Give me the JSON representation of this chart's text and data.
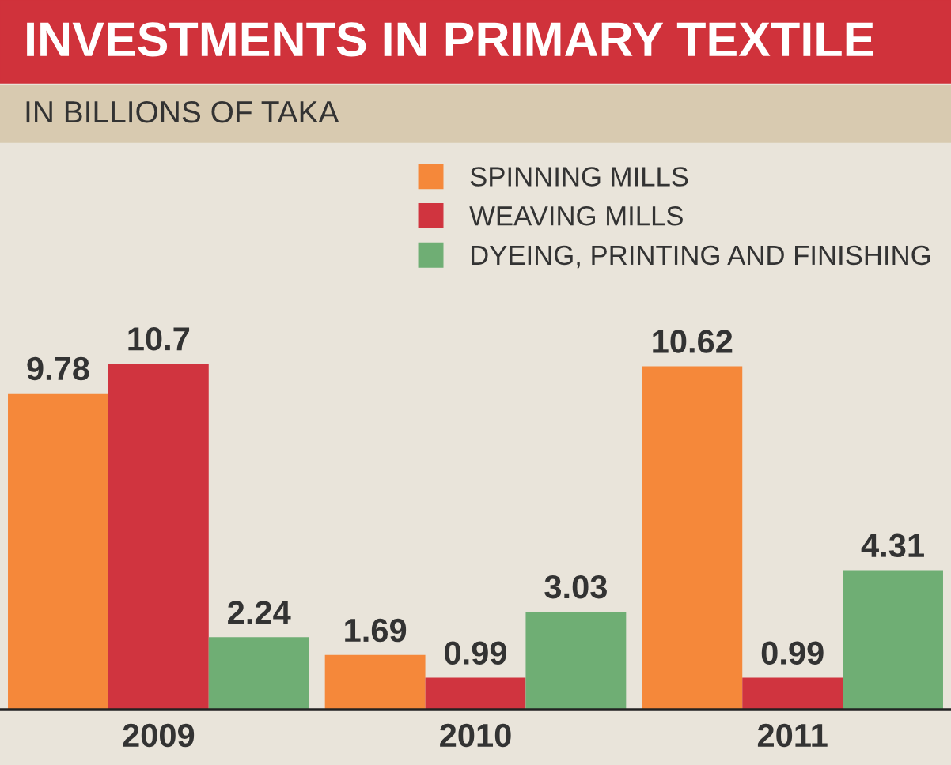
{
  "chart_data": {
    "type": "bar",
    "title": "INVESTMENTS IN PRIMARY TEXTILE",
    "subtitle": "IN BILLIONS OF TAKA",
    "categories": [
      "2009",
      "2010",
      "2011"
    ],
    "series": [
      {
        "name": "SPINNING MILLS",
        "color": "#f5883a",
        "values": [
          9.78,
          1.69,
          10.62
        ]
      },
      {
        "name": "WEAVING MILLS",
        "color": "#d0343f",
        "values": [
          10.7,
          0.99,
          0.99
        ]
      },
      {
        "name": "DYEING, PRINTING AND FINISHING",
        "color": "#6fae74",
        "values": [
          2.24,
          3.03,
          4.31
        ]
      }
    ],
    "data_labels": true,
    "grid": false,
    "legend": "top right"
  }
}
